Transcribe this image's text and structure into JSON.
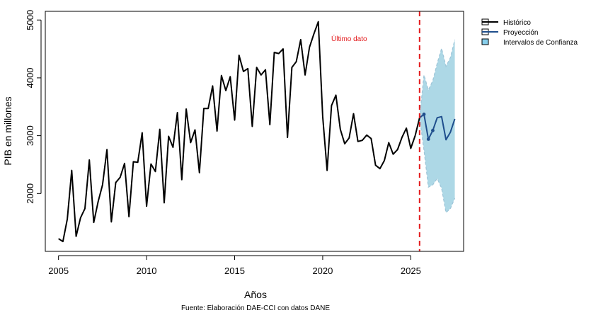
{
  "chart_data": {
    "type": "line",
    "xlabel": "Años",
    "ylabel": "PIB en millones",
    "source": "Fuente: Elaboración DAE-CCI con datos DANE",
    "annotation": "Último dato",
    "xlim": [
      2004.25,
      2028.0
    ],
    "ylim": [
      1000,
      5150
    ],
    "xticks": [
      2005,
      2010,
      2015,
      2020,
      2025
    ],
    "yticks": [
      2000,
      3000,
      4000,
      5000
    ],
    "grid": false,
    "legend_position": "top-right",
    "cutoff_x": 2025.5,
    "colors": {
      "historico": "#000000",
      "proyeccion": "#1f4e8c",
      "intervalo": "#add8e6",
      "legend_band": "#87ceeb",
      "cutoff": "#e31a1c",
      "annotation": "#e31a1c"
    },
    "legend": [
      {
        "key": "historico",
        "label": "Histórico"
      },
      {
        "key": "proyeccion",
        "label": "Proyección"
      },
      {
        "key": "intervalo",
        "label": "Intervalos de Confianza"
      }
    ],
    "series": [
      {
        "name": "Histórico",
        "x": [
          2005.0,
          2005.25,
          2005.5,
          2005.75,
          2006.0,
          2006.25,
          2006.5,
          2006.75,
          2007.0,
          2007.25,
          2007.5,
          2007.75,
          2008.0,
          2008.25,
          2008.5,
          2008.75,
          2009.0,
          2009.25,
          2009.5,
          2009.75,
          2010.0,
          2010.25,
          2010.5,
          2010.75,
          2011.0,
          2011.25,
          2011.5,
          2011.75,
          2012.0,
          2012.25,
          2012.5,
          2012.75,
          2013.0,
          2013.25,
          2013.5,
          2013.75,
          2014.0,
          2014.25,
          2014.5,
          2014.75,
          2015.0,
          2015.25,
          2015.5,
          2015.75,
          2016.0,
          2016.25,
          2016.5,
          2016.75,
          2017.0,
          2017.25,
          2017.5,
          2017.75,
          2018.0,
          2018.25,
          2018.5,
          2018.75,
          2019.0,
          2019.25,
          2019.5,
          2019.75,
          2020.0,
          2020.25,
          2020.5,
          2020.75,
          2021.0,
          2021.25,
          2021.5,
          2021.75,
          2022.0,
          2022.25,
          2022.5,
          2022.75,
          2023.0,
          2023.25,
          2023.5,
          2023.75,
          2024.0,
          2024.25,
          2024.5,
          2024.75,
          2025.0,
          2025.25
        ],
        "values": [
          1220,
          1170,
          1560,
          2400,
          1260,
          1580,
          1740,
          2580,
          1500,
          1860,
          2150,
          2760,
          1510,
          2190,
          2280,
          2520,
          1600,
          2550,
          2540,
          3050,
          1780,
          2510,
          2380,
          3110,
          1840,
          2990,
          2800,
          3400,
          2240,
          3460,
          2880,
          3100,
          2360,
          3470,
          3470,
          3860,
          3080,
          4040,
          3780,
          4020,
          3270,
          4390,
          4110,
          4160,
          3160,
          4180,
          4050,
          4140,
          3190,
          4440,
          4420,
          4500,
          2970,
          4180,
          4280,
          4660,
          4050,
          4530,
          4760,
          4970,
          3330,
          2400,
          3520,
          3700,
          3110,
          2860,
          2960,
          3380,
          2900,
          2920,
          3010,
          2950,
          2490,
          2430,
          2570,
          2880,
          2680,
          2760,
          2970,
          3130,
          2780,
          3000
        ]
      },
      {
        "name": "Proyección",
        "x": [
          2025.5,
          2025.75,
          2026.0,
          2026.25,
          2026.5,
          2026.75,
          2027.0,
          2027.25,
          2027.5
        ],
        "values": [
          3310,
          3370,
          2940,
          3090,
          3310,
          3330,
          2930,
          3060,
          3290
        ]
      }
    ],
    "interval": {
      "name": "Intervalos de Confianza",
      "x": [
        2025.75,
        2026.0,
        2026.25,
        2026.5,
        2026.75,
        2027.0,
        2027.25,
        2027.5
      ],
      "lower": [
        2750,
        2110,
        2150,
        2260,
        2090,
        1670,
        1740,
        1920
      ],
      "upper": [
        4050,
        3790,
        3950,
        4250,
        4510,
        4200,
        4350,
        4660
      ]
    }
  }
}
